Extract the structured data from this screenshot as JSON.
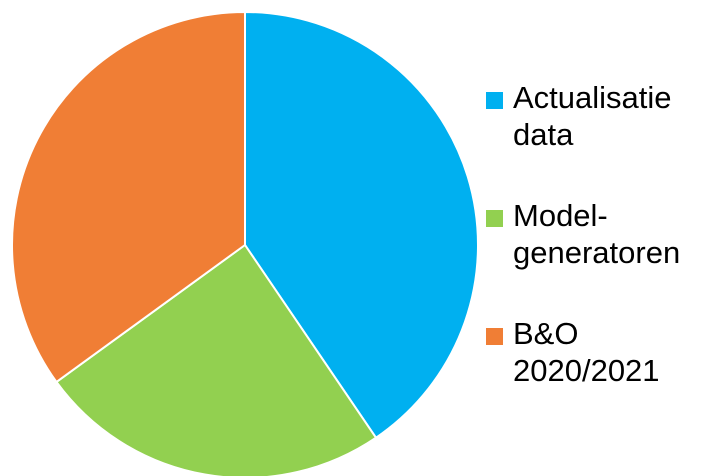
{
  "chart_data": {
    "type": "pie",
    "title": "",
    "start_angle_deg": 0,
    "direction": "clockwise",
    "legend_position": "right",
    "series": [
      {
        "name": "Actualisatie\ndata",
        "value": 40.5,
        "color": "#00B0F0"
      },
      {
        "name": "Model-\ngeneratoren",
        "value": 24.5,
        "color": "#92D050"
      },
      {
        "name": "B&O\n2020/2021",
        "value": 35.0,
        "color": "#F07E35"
      }
    ]
  }
}
